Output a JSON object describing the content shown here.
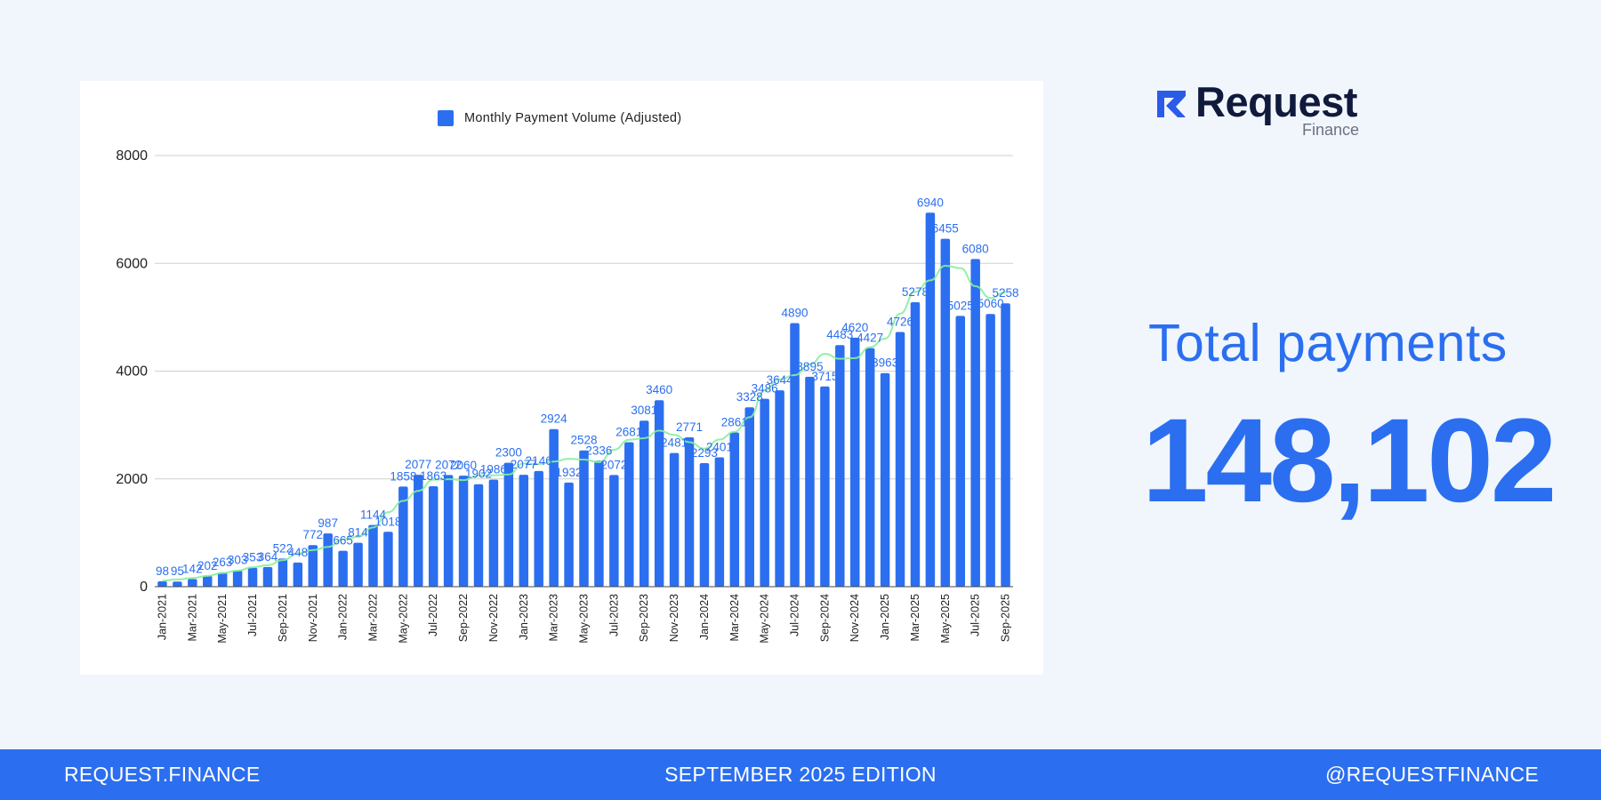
{
  "chart_data": {
    "type": "bar",
    "legend": [
      "Monthly Payment Volume (Adjusted)"
    ],
    "legend_position": "top-center",
    "ylim": [
      0,
      8000
    ],
    "yticks": [
      0,
      2000,
      4000,
      6000,
      8000
    ],
    "grid": true,
    "trendline": true,
    "categories": [
      "Jan-2021",
      "Feb-2021",
      "Mar-2021",
      "Apr-2021",
      "May-2021",
      "Jun-2021",
      "Jul-2021",
      "Aug-2021",
      "Sep-2021",
      "Oct-2021",
      "Nov-2021",
      "Dec-2021",
      "Jan-2022",
      "Feb-2022",
      "Mar-2022",
      "Apr-2022",
      "May-2022",
      "Jun-2022",
      "Jul-2022",
      "Aug-2022",
      "Sep-2022",
      "Oct-2022",
      "Nov-2022",
      "Dec-2022",
      "Jan-2023",
      "Feb-2023",
      "Mar-2023",
      "Apr-2023",
      "May-2023",
      "Jun-2023",
      "Jul-2023",
      "Aug-2023",
      "Sep-2023",
      "Oct-2023",
      "Nov-2023",
      "Dec-2023",
      "Jan-2024",
      "Feb-2024",
      "Mar-2024",
      "Apr-2024",
      "May-2024",
      "Jun-2024",
      "Jul-2024",
      "Aug-2024",
      "Sep-2024",
      "Oct-2024",
      "Nov-2024",
      "Dec-2024",
      "Jan-2025",
      "Feb-2025",
      "Mar-2025",
      "Apr-2025",
      "May-2025",
      "Jun-2025",
      "Jul-2025",
      "Aug-2025",
      "Sep-2025"
    ],
    "x_tick_labels": [
      "Jan-2021",
      "Mar-2021",
      "May-2021",
      "Jul-2021",
      "Sep-2021",
      "Nov-2021",
      "Jan-2022",
      "Mar-2022",
      "May-2022",
      "Jul-2022",
      "Sep-2022",
      "Nov-2022",
      "Jan-2023",
      "Mar-2023",
      "May-2023",
      "Jul-2023",
      "Sep-2023",
      "Nov-2023",
      "Jan-2024",
      "Mar-2024",
      "May-2024",
      "Jul-2024",
      "Sep-2024",
      "Nov-2024",
      "Jan-2025",
      "Mar-2025",
      "May-2025",
      "Jul-2025",
      "Sep-2025"
    ],
    "series": [
      {
        "name": "Monthly Payment Volume (Adjusted)",
        "values": [
          98,
          95,
          142,
          202,
          263,
          303,
          353,
          364,
          522,
          448,
          772,
          987,
          665,
          814,
          1144,
          1018,
          1858,
          2077,
          1863,
          2072,
          2060,
          1902,
          1986,
          2300,
          2077,
          2146,
          2924,
          1932,
          2528,
          2336,
          2072,
          2681,
          3081,
          3460,
          2481,
          2771,
          2293,
          2401,
          2861,
          3328,
          3486,
          3644,
          4890,
          3895,
          3715,
          4483,
          4620,
          4427,
          3963,
          4726,
          5278,
          6940,
          6455,
          5025,
          6080,
          5060,
          5258
        ]
      }
    ],
    "colors": {
      "bar": "#2b6ff0",
      "trend": "#86ef9a",
      "label": "#2b6ff0",
      "grid": "#cfcfcf"
    }
  },
  "logo": {
    "word": "Request",
    "sub": "Finance"
  },
  "total": {
    "label": "Total payments",
    "value": "148,102"
  },
  "footer": {
    "left": "REQUEST.FINANCE",
    "center": "SEPTEMBER 2025  EDITION",
    "right": "@REQUESTFINANCE"
  }
}
